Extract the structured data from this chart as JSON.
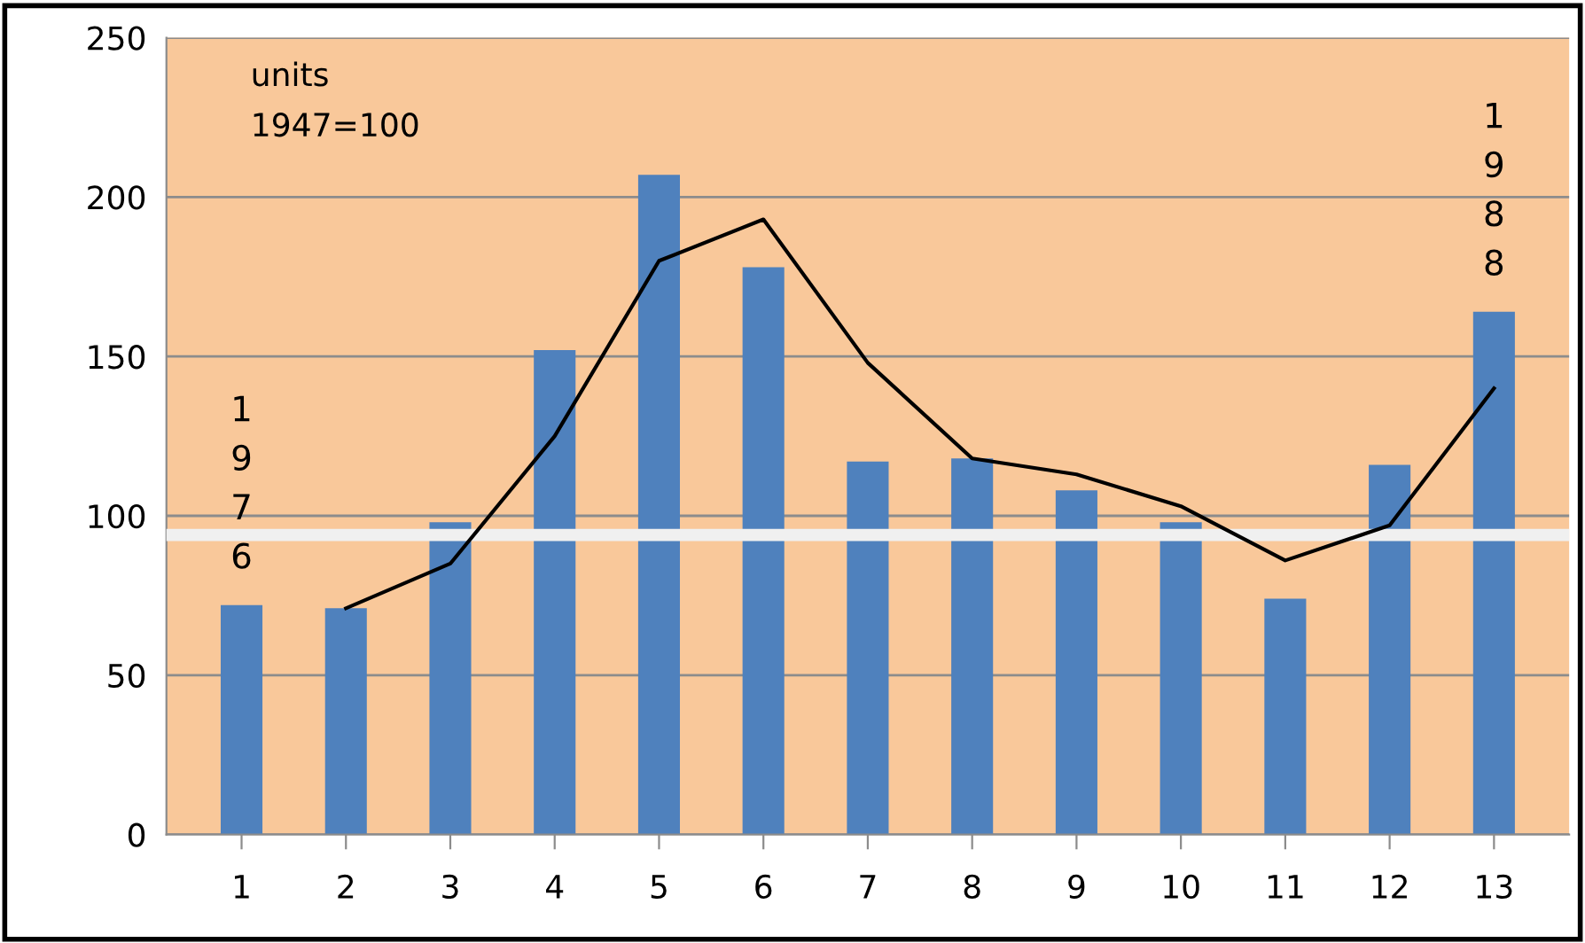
{
  "chart_data": {
    "type": "bar",
    "categories": [
      "1",
      "2",
      "3",
      "4",
      "5",
      "6",
      "7",
      "8",
      "9",
      "10",
      "11",
      "12",
      "13"
    ],
    "series": [
      {
        "color": "#4f81bd",
        "values": [
          72,
          71,
          98,
          152,
          207,
          178,
          117,
          118,
          108,
          98,
          74,
          116,
          164
        ]
      },
      {
        "type": "line",
        "color": "#000000",
        "values": [
          null,
          71,
          85,
          125,
          180,
          193,
          148,
          118,
          113,
          103,
          86,
          97,
          140
        ]
      }
    ],
    "ylim": [
      0,
      250
    ],
    "yticks": [
      0,
      50,
      100,
      150,
      200,
      250
    ],
    "grid": "y",
    "legend": false,
    "marker": "none",
    "line_style": "solid",
    "ref_lines": [
      {
        "axis": "y",
        "value": 94,
        "color": "#f0f0f0"
      }
    ],
    "annotations": [
      "units\n1947=100",
      {
        "text": "1976",
        "x": "1",
        "y": 72
      },
      {
        "text": "1988",
        "x": "13",
        "y": 164
      }
    ]
  }
}
